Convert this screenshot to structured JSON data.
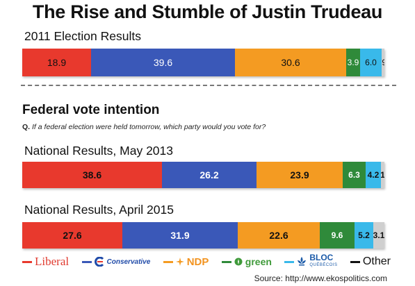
{
  "title": "The Rise and Stumble of Justin Trudeau",
  "section_2011": "2011 Election Results",
  "subhead": "Federal vote intention",
  "question_prefix": "Q.",
  "question_text": "If a federal election were held tomorrow, which party would you vote for?",
  "section_2013": "National Results, May 2013",
  "section_2015": "National Results, April 2015",
  "source": "Source: http://www.ekospolitics.com",
  "legend": {
    "liberal": "Liberal",
    "conservative": "Conservative",
    "ndp": "NDP",
    "green": "green",
    "bloc": "BLOC",
    "bloc_sub": "QUÉBÉCOIS",
    "other": "Other"
  },
  "colors": {
    "liberal": "#e8392d",
    "conservative": "#3a58b8",
    "ndp": "#f49b22",
    "green": "#2f8a3a",
    "bloc": "#39b9ea",
    "other": "#c8c8c8"
  },
  "chart_data": [
    {
      "type": "bar",
      "title": "2011 Election Results",
      "stacked": true,
      "orientation": "horizontal",
      "series": [
        {
          "name": "Liberal",
          "value": 18.9,
          "label": "18.9"
        },
        {
          "name": "Conservative",
          "value": 39.6,
          "label": "39.6"
        },
        {
          "name": "NDP",
          "value": 30.6,
          "label": "30.6"
        },
        {
          "name": "green",
          "value": 3.9,
          "label": "3.9"
        },
        {
          "name": "BLOC",
          "value": 6.0,
          "label": "6.0"
        },
        {
          "name": "Other",
          "value": 0.9,
          "label": ".9"
        }
      ]
    },
    {
      "type": "bar",
      "title": "National Results, May 2013",
      "stacked": true,
      "orientation": "horizontal",
      "series": [
        {
          "name": "Liberal",
          "value": 38.6,
          "label": "38.6"
        },
        {
          "name": "Conservative",
          "value": 26.2,
          "label": "26.2"
        },
        {
          "name": "NDP",
          "value": 23.9,
          "label": "23.9"
        },
        {
          "name": "green",
          "value": 6.3,
          "label": "6.3"
        },
        {
          "name": "BLOC",
          "value": 4.2,
          "label": "4.2"
        },
        {
          "name": "Other",
          "value": 1.0,
          "label": "1"
        }
      ]
    },
    {
      "type": "bar",
      "title": "National Results, April 2015",
      "stacked": true,
      "orientation": "horizontal",
      "series": [
        {
          "name": "Liberal",
          "value": 27.6,
          "label": "27.6"
        },
        {
          "name": "Conservative",
          "value": 31.9,
          "label": "31.9"
        },
        {
          "name": "NDP",
          "value": 22.6,
          "label": "22.6"
        },
        {
          "name": "green",
          "value": 9.6,
          "label": "9.6"
        },
        {
          "name": "BLOC",
          "value": 5.2,
          "label": "5.2"
        },
        {
          "name": "Other",
          "value": 3.1,
          "label": "3.1"
        }
      ]
    }
  ]
}
